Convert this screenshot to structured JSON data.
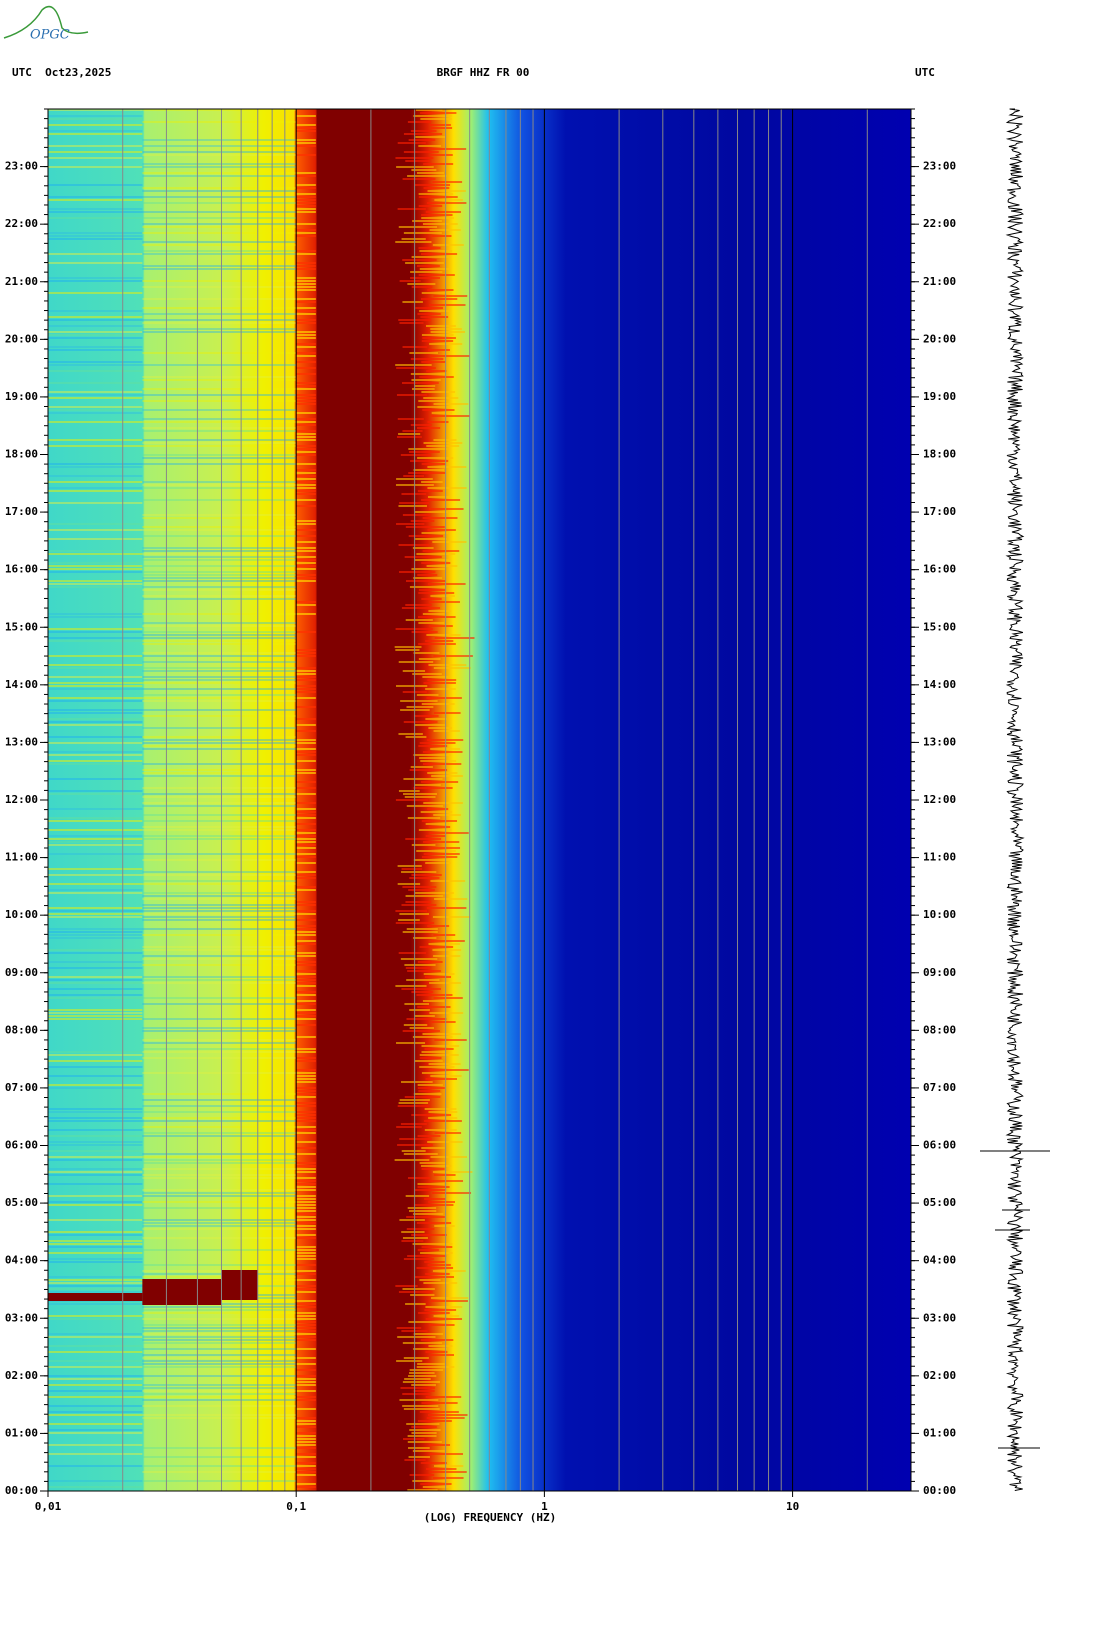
{
  "header": {
    "logo": "OPGC"
  },
  "chart_data": {
    "type": "spectrogram",
    "title": "BRGF HHZ FR 00",
    "date_label": "UTC  Oct23,2025",
    "right_label": "UTC",
    "x_label": "(LOG) FREQUENCY (HZ)",
    "x_log": true,
    "xlim": [
      0.01,
      30
    ],
    "xticks": [
      {
        "value": 0.01,
        "label": "0,01"
      },
      {
        "value": 0.1,
        "label": "0,1"
      },
      1,
      10
    ],
    "ylim": [
      0,
      24
    ],
    "yticks": [
      {
        "value": 0,
        "label": "00:00"
      },
      {
        "value": 1,
        "label": "01:00"
      },
      {
        "value": 2,
        "label": "02:00"
      },
      {
        "value": 3,
        "label": "03:00"
      },
      {
        "value": 4,
        "label": "04:00"
      },
      {
        "value": 5,
        "label": "05:00"
      },
      {
        "value": 6,
        "label": "06:00"
      },
      {
        "value": 7,
        "label": "07:00"
      },
      {
        "value": 8,
        "label": "08:00"
      },
      {
        "value": 9,
        "label": "09:00"
      },
      {
        "value": 10,
        "label": "10:00"
      },
      {
        "value": 11,
        "label": "11:00"
      },
      {
        "value": 12,
        "label": "12:00"
      },
      {
        "value": 13,
        "label": "13:00"
      },
      {
        "value": 14,
        "label": "14:00"
      },
      {
        "value": 15,
        "label": "15:00"
      },
      {
        "value": 16,
        "label": "16:00"
      },
      {
        "value": 17,
        "label": "17:00"
      },
      {
        "value": 18,
        "label": "18:00"
      },
      {
        "value": 19,
        "label": "19:00"
      },
      {
        "value": 20,
        "label": "20:00"
      },
      {
        "value": 21,
        "label": "21:00"
      },
      {
        "value": 22,
        "label": "22:00"
      },
      {
        "value": 23,
        "label": "23:00"
      }
    ]
  }
}
